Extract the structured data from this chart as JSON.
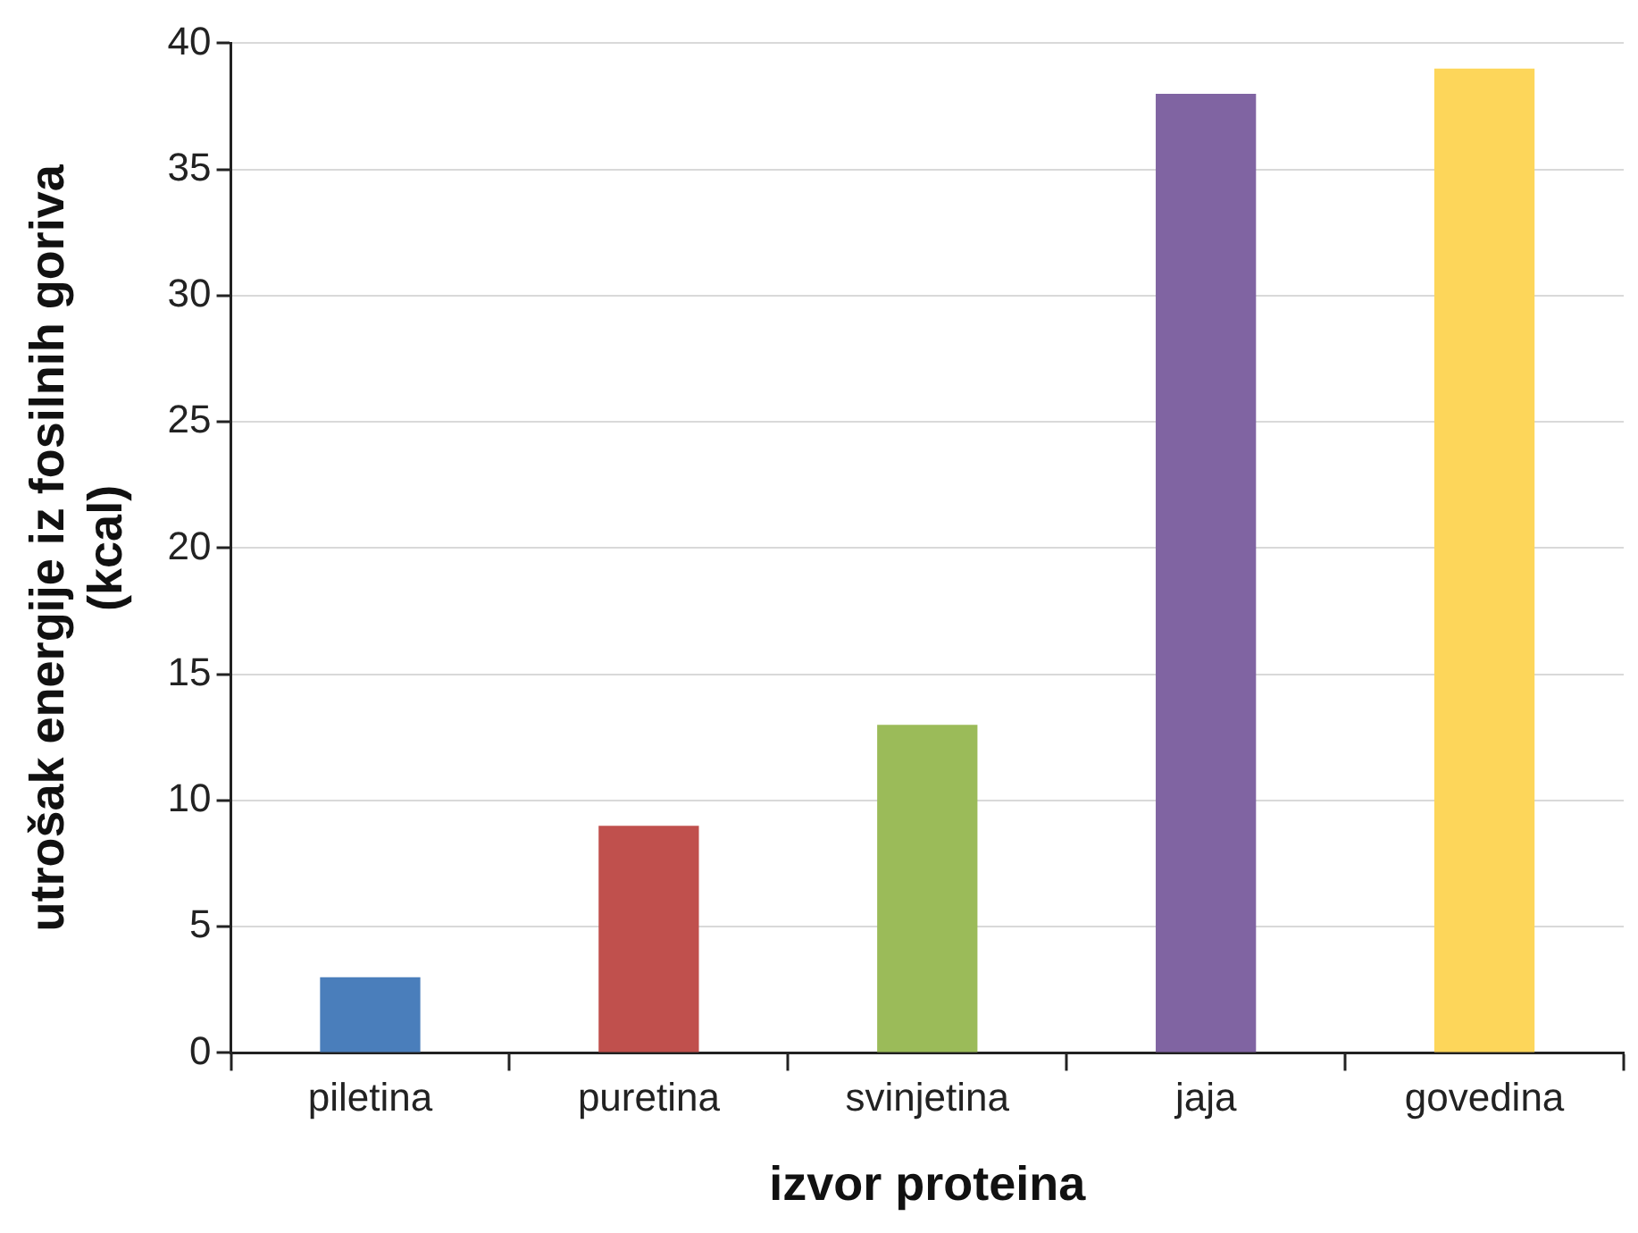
{
  "chart_data": {
    "type": "bar",
    "xlabel": "izvor proteina",
    "ylabel": "utrošak energije iz fosilnih goriva\n(kcal)",
    "categories": [
      "piletina",
      "puretina",
      "svinjetina",
      "jaja",
      "govedina"
    ],
    "values": [
      3,
      9,
      13,
      38,
      39
    ],
    "colors": [
      "#4a7ebb",
      "#c0504d",
      "#9bbb59",
      "#8064a2",
      "#fdd65a"
    ],
    "ylim": [
      0,
      40
    ],
    "yticks": [
      0,
      5,
      10,
      15,
      20,
      25,
      30,
      35,
      40
    ],
    "grid": "y",
    "legend": false
  }
}
